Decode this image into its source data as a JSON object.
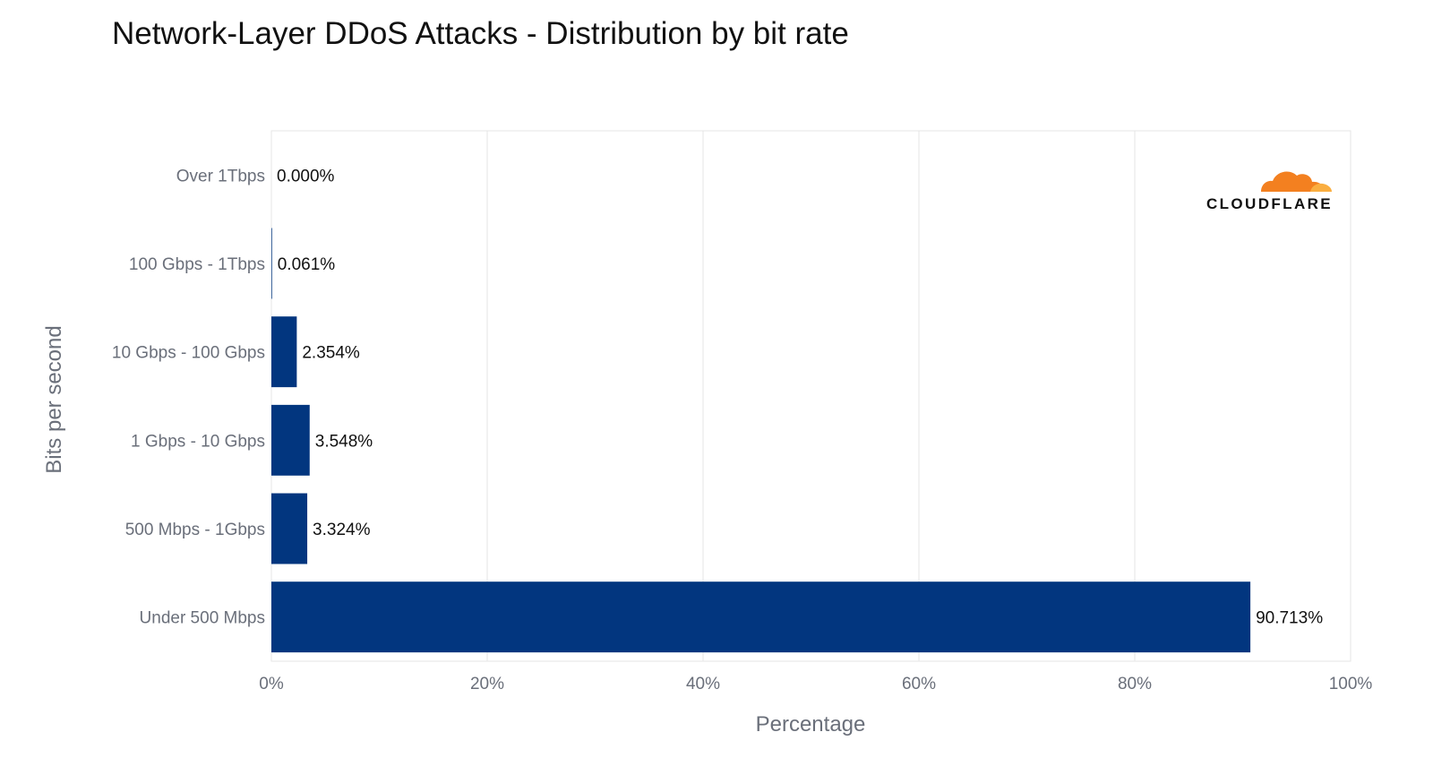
{
  "chart_data": {
    "type": "bar",
    "orientation": "horizontal",
    "title": "Network-Layer DDoS Attacks - Distribution by bit rate",
    "xlabel": "Percentage",
    "ylabel": "Bits per second",
    "xlim": [
      0,
      100
    ],
    "x_ticks": [
      "0%",
      "20%",
      "40%",
      "60%",
      "80%",
      "100%"
    ],
    "x_tick_values": [
      0,
      20,
      40,
      60,
      80,
      100
    ],
    "categories": [
      "Over 1Tbps",
      "100 Gbps - 1Tbps",
      "10 Gbps - 100 Gbps",
      "1 Gbps - 10 Gbps",
      "500 Mbps - 1Gbps",
      "Under 500 Mbps"
    ],
    "values": [
      0.0,
      0.061,
      2.354,
      3.548,
      3.324,
      90.713
    ],
    "value_labels": [
      "0.000%",
      "0.061%",
      "2.354%",
      "3.548%",
      "3.324%",
      "90.713%"
    ],
    "bar_color": "#02367f",
    "grid": true
  },
  "logo": {
    "text": "CLOUDFLARE",
    "colors": {
      "primary": "#f38020",
      "secondary": "#faae40"
    }
  }
}
